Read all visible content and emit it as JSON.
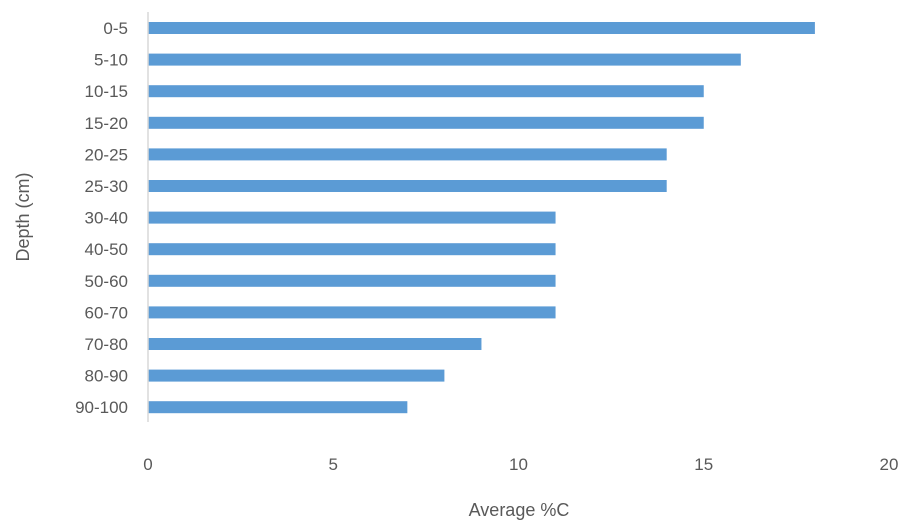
{
  "chart_data": {
    "type": "bar",
    "orientation": "horizontal",
    "title": "",
    "xlabel": "Average %C",
    "ylabel": "Depth (cm)",
    "categories": [
      "0-5",
      "5-10",
      "10-15",
      "15-20",
      "20-25",
      "25-30",
      "30-40",
      "40-50",
      "50-60",
      "60-70",
      "70-80",
      "80-90",
      "90-100"
    ],
    "values": [
      18,
      16,
      15,
      15,
      14,
      14,
      11,
      11,
      11,
      11,
      9,
      8,
      7
    ],
    "xlim": [
      0,
      20
    ],
    "xticks": [
      "0",
      "5",
      "10",
      "15",
      "20"
    ],
    "grid": false,
    "legend": "none",
    "bar_color": "#5b9bd5",
    "axis_color": "#d9d9d9",
    "text_color": "#595959"
  }
}
